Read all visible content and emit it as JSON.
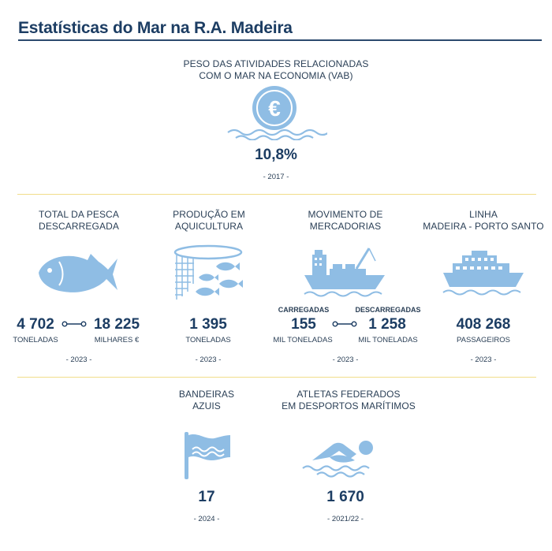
{
  "title": "Estatísticas do Mar na R.A. Madeira",
  "colors": {
    "icon": "#8fbde4",
    "title": "#1c3d63",
    "gold": "#f1dd8a"
  },
  "vab": {
    "caption_line1": "PESO DAS ATIVIDADES RELACIONADAS",
    "caption_line2": "COM O MAR NA ECONOMIA (VAB)",
    "icon": "euro-coin-waves-icon",
    "value": "10,8%",
    "year": "- 2017 -"
  },
  "pesca": {
    "caption_line1": "TOTAL DA PESCA",
    "caption_line2": "DESCARREGADA",
    "icon": "fish-icon",
    "value1": "4 702",
    "unit1": "TONELADAS",
    "value2": "18 225",
    "unit2": "MILHARES €",
    "year": "- 2023 -"
  },
  "aquicultura": {
    "caption_line1": "PRODUÇÃO EM",
    "caption_line2": "AQUICULTURA",
    "icon": "fish-net-icon",
    "value": "1 395",
    "unit": "TONELADAS",
    "year": "- 2023 -"
  },
  "mercadorias": {
    "caption_line1": "MOVIMENTO DE",
    "caption_line2": "MERCADORIAS",
    "icon": "cargo-ship-icon",
    "label1": "CARREGADAS",
    "value1": "155",
    "unit1": "MIL TONELADAS",
    "label2": "DESCARREGADAS",
    "value2": "1 258",
    "unit2": "MIL TONELADAS",
    "year": "- 2023 -"
  },
  "linha": {
    "caption_line1": "LINHA",
    "caption_line2": "MADEIRA - PORTO SANTO",
    "icon": "ferry-icon",
    "value": "408 268",
    "unit": "PASSAGEIROS",
    "year": "- 2023 -"
  },
  "bandeiras": {
    "caption_line1": "BANDEIRAS",
    "caption_line2": "AZUIS",
    "icon": "blue-flag-icon",
    "value": "17",
    "year": "- 2024 -"
  },
  "atletas": {
    "caption_line1": "ATLETAS FEDERADOS",
    "caption_line2": "EM DESPORTOS MARÍTIMOS",
    "icon": "swimmer-icon",
    "value": "1 670",
    "year": "- 2021/22 -"
  }
}
